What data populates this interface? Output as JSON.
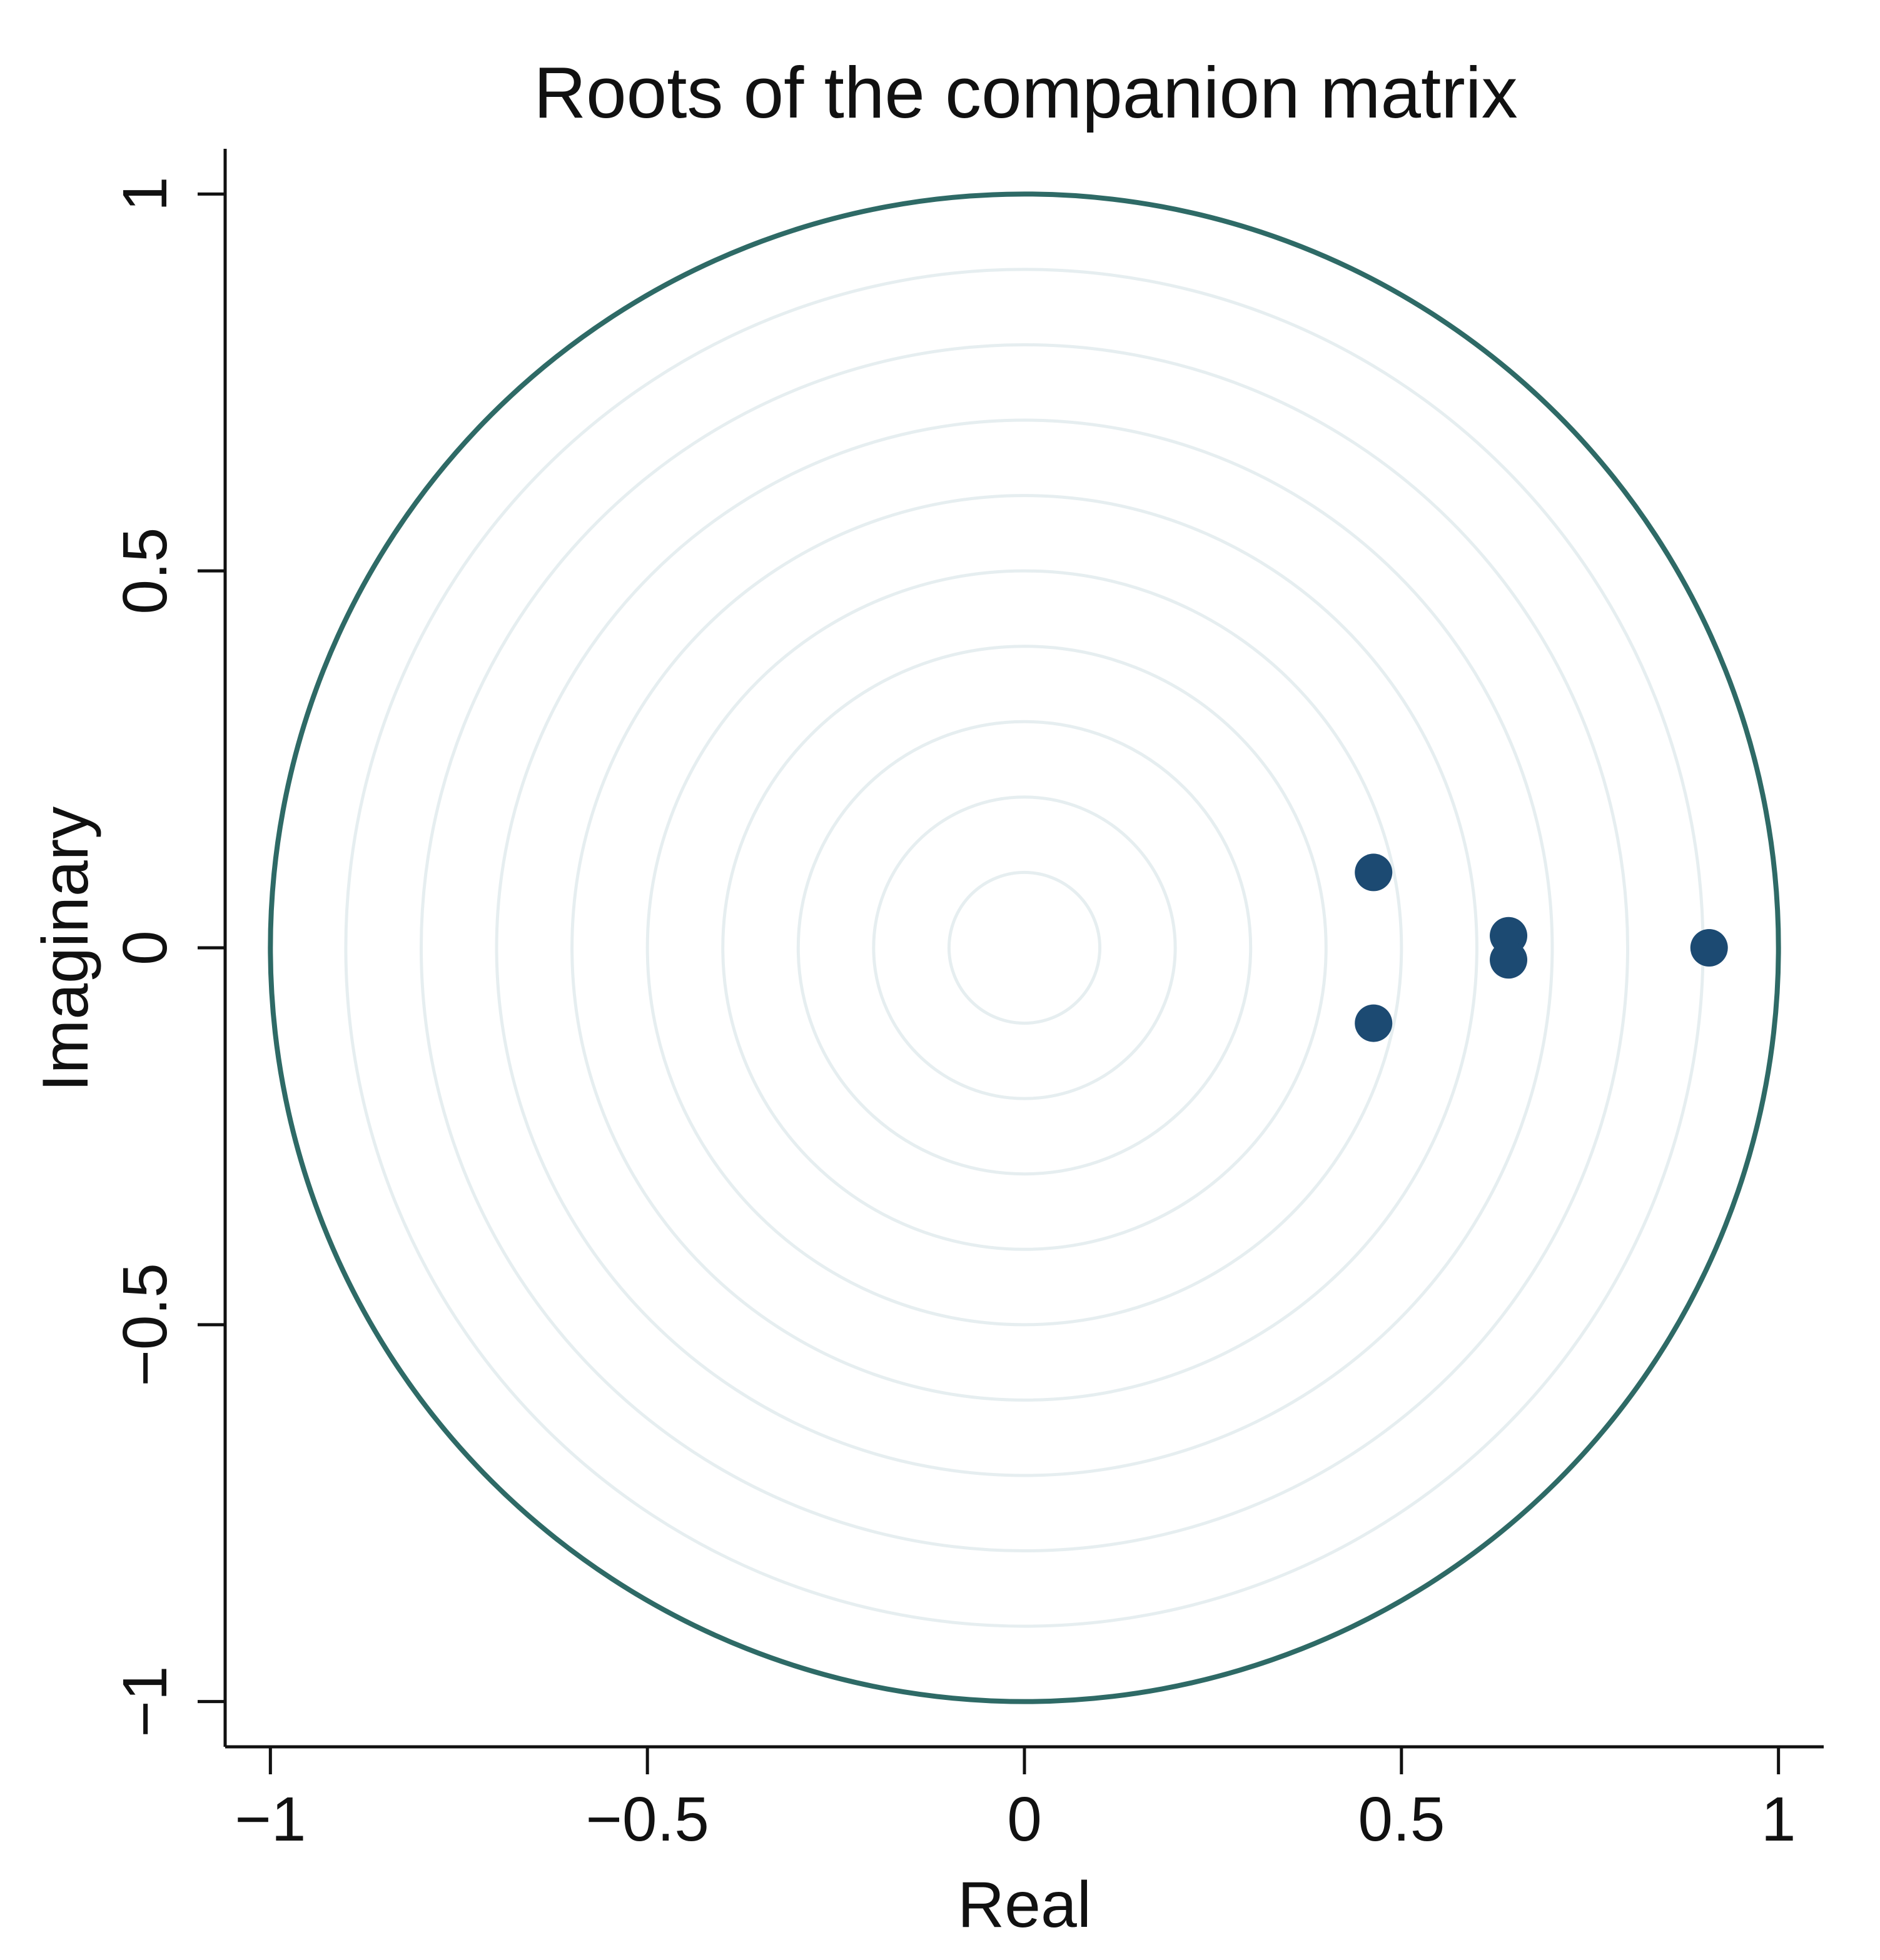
{
  "chart_data": {
    "type": "scatter",
    "title": "Roots of the companion matrix",
    "xlabel": "Real",
    "ylabel": "Imaginary",
    "xlim": [
      -1.06,
      1.06
    ],
    "ylim": [
      -1.06,
      1.06
    ],
    "x_ticks": [
      {
        "value": -1,
        "label": "−1"
      },
      {
        "value": -0.5,
        "label": "−0.5"
      },
      {
        "value": 0,
        "label": "0"
      },
      {
        "value": 0.5,
        "label": "0.5"
      },
      {
        "value": 1,
        "label": "1"
      }
    ],
    "y_ticks": [
      {
        "value": -1,
        "label": "−1"
      },
      {
        "value": -0.5,
        "label": "−0.5"
      },
      {
        "value": 0,
        "label": "0"
      },
      {
        "value": 0.5,
        "label": "0.5"
      },
      {
        "value": 1,
        "label": "1"
      }
    ],
    "unit_circle": {
      "radius": 1,
      "color": "#2e6a66"
    },
    "reference_circles": {
      "radii": [
        0.1,
        0.2,
        0.3,
        0.4,
        0.5,
        0.6,
        0.7,
        0.8,
        0.9
      ],
      "color": "#e6eef0"
    },
    "marker_color": "#1c4a72",
    "points": [
      {
        "x": 0.908,
        "y": 0.0
      },
      {
        "x": 0.642,
        "y": 0.016
      },
      {
        "x": 0.642,
        "y": -0.016
      },
      {
        "x": 0.463,
        "y": 0.1
      },
      {
        "x": 0.463,
        "y": -0.1
      }
    ],
    "grid": false
  }
}
